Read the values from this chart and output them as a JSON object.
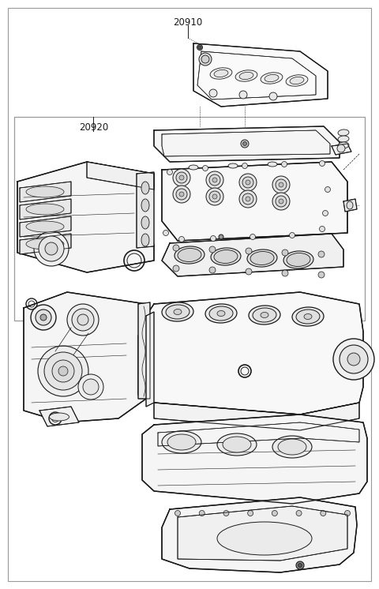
{
  "bg_color": "#ffffff",
  "line_color": "#1a1a1a",
  "label_20910": "20910",
  "label_20920": "20920",
  "fig_width": 4.8,
  "fig_height": 7.46,
  "dpi": 100,
  "border_color": "#999999"
}
